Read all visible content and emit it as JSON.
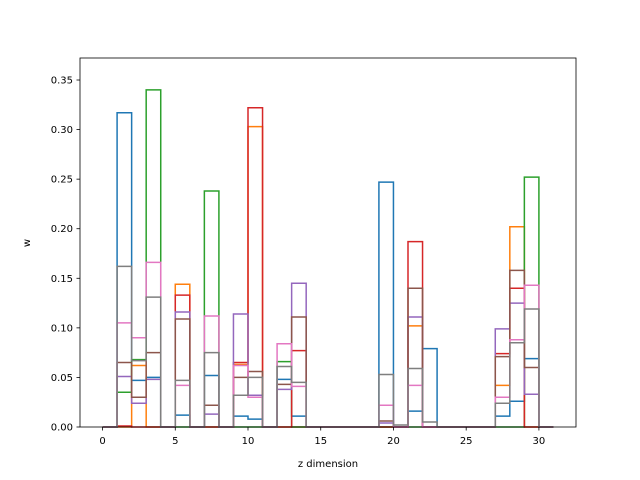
{
  "chart_data": {
    "type": "step-histogram",
    "title": "",
    "xlabel": "z dimension",
    "ylabel": "w",
    "xlim": [
      -1.55,
      32.55
    ],
    "ylim": [
      0,
      0.3722
    ],
    "xticks": [
      0,
      5,
      10,
      15,
      20,
      25,
      30
    ],
    "yticks": [
      0.0,
      0.05,
      0.1,
      0.15,
      0.2,
      0.25,
      0.3,
      0.35
    ],
    "yticks_labels": [
      "0.00",
      "0.05",
      "0.10",
      "0.15",
      "0.20",
      "0.25",
      "0.30",
      "0.35"
    ],
    "bin_edges": [
      0,
      1,
      2,
      3,
      4,
      5,
      6,
      7,
      8,
      9,
      10,
      11,
      12,
      13,
      14,
      15,
      16,
      17,
      18,
      19,
      20,
      21,
      22,
      23,
      24,
      25,
      26,
      27,
      28,
      29,
      30,
      31
    ],
    "grid": false,
    "legend": "none",
    "colors": [
      "#1f77b4",
      "#ff7f0e",
      "#2ca02c",
      "#d62728",
      "#9467bd",
      "#8c564b",
      "#e377c2",
      "#7f7f7f"
    ],
    "series": [
      {
        "color": "#1f77b4",
        "values": [
          0,
          0.317,
          0.047,
          0.05,
          0,
          0.012,
          0,
          0.052,
          0,
          0.011,
          0.008,
          0,
          0.048,
          0.011,
          0,
          0,
          0,
          0,
          0,
          0.247,
          0,
          0.016,
          0.079,
          0,
          0,
          0,
          0,
          0.011,
          0.026,
          0.069,
          0
        ]
      },
      {
        "color": "#ff7f0e",
        "values": [
          0,
          0,
          0.062,
          0,
          0,
          0.144,
          0,
          0,
          0,
          0.063,
          0.303,
          0,
          0,
          0,
          0,
          0,
          0,
          0,
          0,
          0,
          0,
          0.102,
          0,
          0,
          0,
          0,
          0,
          0.042,
          0.202,
          0,
          0
        ]
      },
      {
        "color": "#2ca02c",
        "values": [
          0,
          0.035,
          0.068,
          0.34,
          0,
          0,
          0,
          0.238,
          0,
          0,
          0,
          0,
          0.066,
          0,
          0,
          0,
          0,
          0,
          0,
          0,
          0,
          0,
          0,
          0,
          0,
          0,
          0,
          0,
          0,
          0.252,
          0
        ]
      },
      {
        "color": "#d62728",
        "values": [
          0,
          0.001,
          0,
          0,
          0,
          0.133,
          0,
          0,
          0,
          0.065,
          0.322,
          0,
          0,
          0.077,
          0,
          0,
          0,
          0,
          0,
          0,
          0,
          0.187,
          0,
          0,
          0,
          0,
          0,
          0.074,
          0.14,
          0,
          0
        ]
      },
      {
        "color": "#9467bd",
        "values": [
          0,
          0.051,
          0.024,
          0.048,
          0,
          0.116,
          0,
          0.013,
          0,
          0.114,
          0.032,
          0,
          0.038,
          0.145,
          0,
          0,
          0,
          0,
          0,
          0.004,
          0,
          0.111,
          0,
          0,
          0,
          0,
          0,
          0.099,
          0.125,
          0.033,
          0
        ]
      },
      {
        "color": "#8c564b",
        "values": [
          0,
          0.065,
          0.03,
          0.075,
          0,
          0.109,
          0,
          0.022,
          0,
          0.05,
          0.056,
          0,
          0.043,
          0.111,
          0,
          0,
          0,
          0,
          0,
          0.006,
          0,
          0.14,
          0,
          0,
          0,
          0,
          0,
          0.071,
          0.158,
          0.06,
          0
        ]
      },
      {
        "color": "#e377c2",
        "values": [
          0,
          0.105,
          0.09,
          0.166,
          0,
          0.042,
          0,
          0.112,
          0,
          0.062,
          0.03,
          0,
          0.084,
          0.041,
          0,
          0,
          0,
          0,
          0,
          0.022,
          0,
          0.042,
          0,
          0,
          0,
          0,
          0,
          0.03,
          0.088,
          0.143,
          0
        ]
      },
      {
        "color": "#7f7f7f",
        "values": [
          0,
          0.162,
          0.067,
          0.131,
          0,
          0.047,
          0,
          0.075,
          0,
          0.032,
          0.05,
          0,
          0.061,
          0.045,
          0,
          0,
          0,
          0,
          0,
          0.053,
          0.002,
          0.059,
          0.005,
          0,
          0,
          0,
          0,
          0.024,
          0.085,
          0.119,
          0
        ]
      }
    ]
  }
}
